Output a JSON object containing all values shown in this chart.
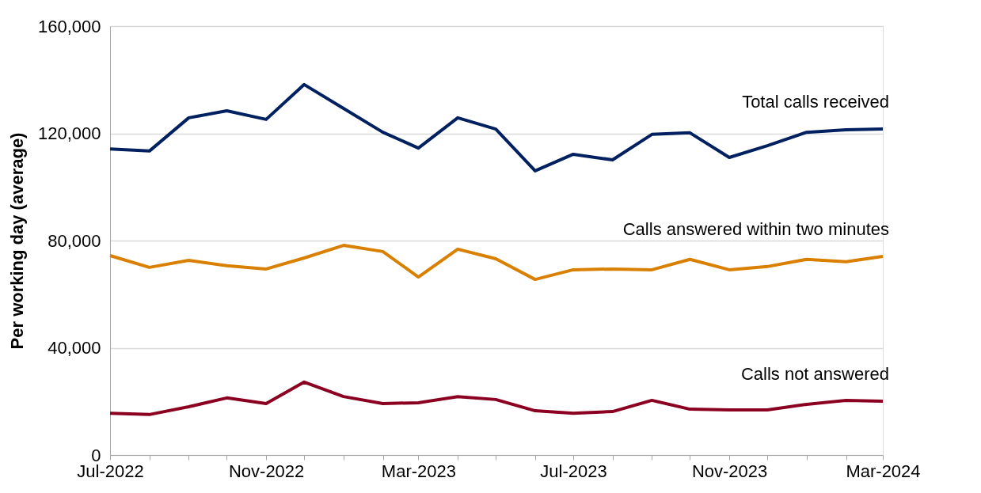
{
  "chart_data": {
    "type": "line",
    "ylabel": "Per working day (average)",
    "x": [
      "2022-07",
      "2022-08",
      "2022-09",
      "2022-10",
      "2022-11",
      "2022-12",
      "2023-01",
      "2023-02",
      "2023-03",
      "2023-04",
      "2023-05",
      "2023-06",
      "2023-07",
      "2023-08",
      "2023-09",
      "2023-10",
      "2023-11",
      "2023-12",
      "2024-01",
      "2024-02",
      "2024-03"
    ],
    "series": [
      {
        "name": "Total calls received",
        "color": "#002060",
        "values": [
          114200,
          113400,
          125800,
          128400,
          125200,
          138200,
          129300,
          120400,
          114500,
          125800,
          121600,
          106000,
          112200,
          110100,
          119600,
          120200,
          111000,
          115400,
          120400,
          121300,
          121600
        ]
      },
      {
        "name": "Calls answered within two minutes",
        "color": "#d98000",
        "values": [
          74400,
          70000,
          72600,
          70600,
          69400,
          73500,
          78200,
          75900,
          66400,
          76800,
          73200,
          65500,
          69100,
          69400,
          69100,
          73000,
          69100,
          70300,
          73000,
          72100,
          74100
        ]
      },
      {
        "name": "Calls not answered",
        "color": "#8b0020",
        "values": [
          15600,
          15100,
          18000,
          21300,
          19200,
          27200,
          21800,
          19200,
          19500,
          21800,
          20700,
          16500,
          15600,
          16200,
          20400,
          17100,
          16800,
          16800,
          18900,
          20400,
          20100
        ]
      }
    ],
    "xlim": [
      "2022-07",
      "2024-03"
    ],
    "xticks": [
      {
        "value": "2022-07",
        "label": "Jul-2022"
      },
      {
        "value": "2022-08",
        "label": null
      },
      {
        "value": "2022-09",
        "label": null
      },
      {
        "value": "2022-10",
        "label": null
      },
      {
        "value": "2022-11",
        "label": "Nov-2022"
      },
      {
        "value": "2022-12",
        "label": null
      },
      {
        "value": "2023-01",
        "label": null
      },
      {
        "value": "2023-02",
        "label": null
      },
      {
        "value": "2023-03",
        "label": "Mar-2023"
      },
      {
        "value": "2023-04",
        "label": null
      },
      {
        "value": "2023-05",
        "label": null
      },
      {
        "value": "2023-06",
        "label": null
      },
      {
        "value": "2023-07",
        "label": "Jul-2023"
      },
      {
        "value": "2023-08",
        "label": null
      },
      {
        "value": "2023-09",
        "label": null
      },
      {
        "value": "2023-10",
        "label": null
      },
      {
        "value": "2023-11",
        "label": "Nov-2023"
      },
      {
        "value": "2023-12",
        "label": null
      },
      {
        "value": "2024-01",
        "label": null
      },
      {
        "value": "2024-02",
        "label": null
      },
      {
        "value": "2024-03",
        "label": "Mar-2024"
      }
    ],
    "ylim": [
      0,
      160000
    ],
    "yticks": [
      0,
      {
        "value": 40000,
        "label": "40,000"
      },
      {
        "value": 80000,
        "label": "80,000"
      },
      {
        "value": 120000,
        "label": "120,000"
      },
      {
        "value": 160000,
        "label": "160,000"
      }
    ],
    "grid": "y",
    "legend": false,
    "marker": "none",
    "line_style": "solid"
  }
}
